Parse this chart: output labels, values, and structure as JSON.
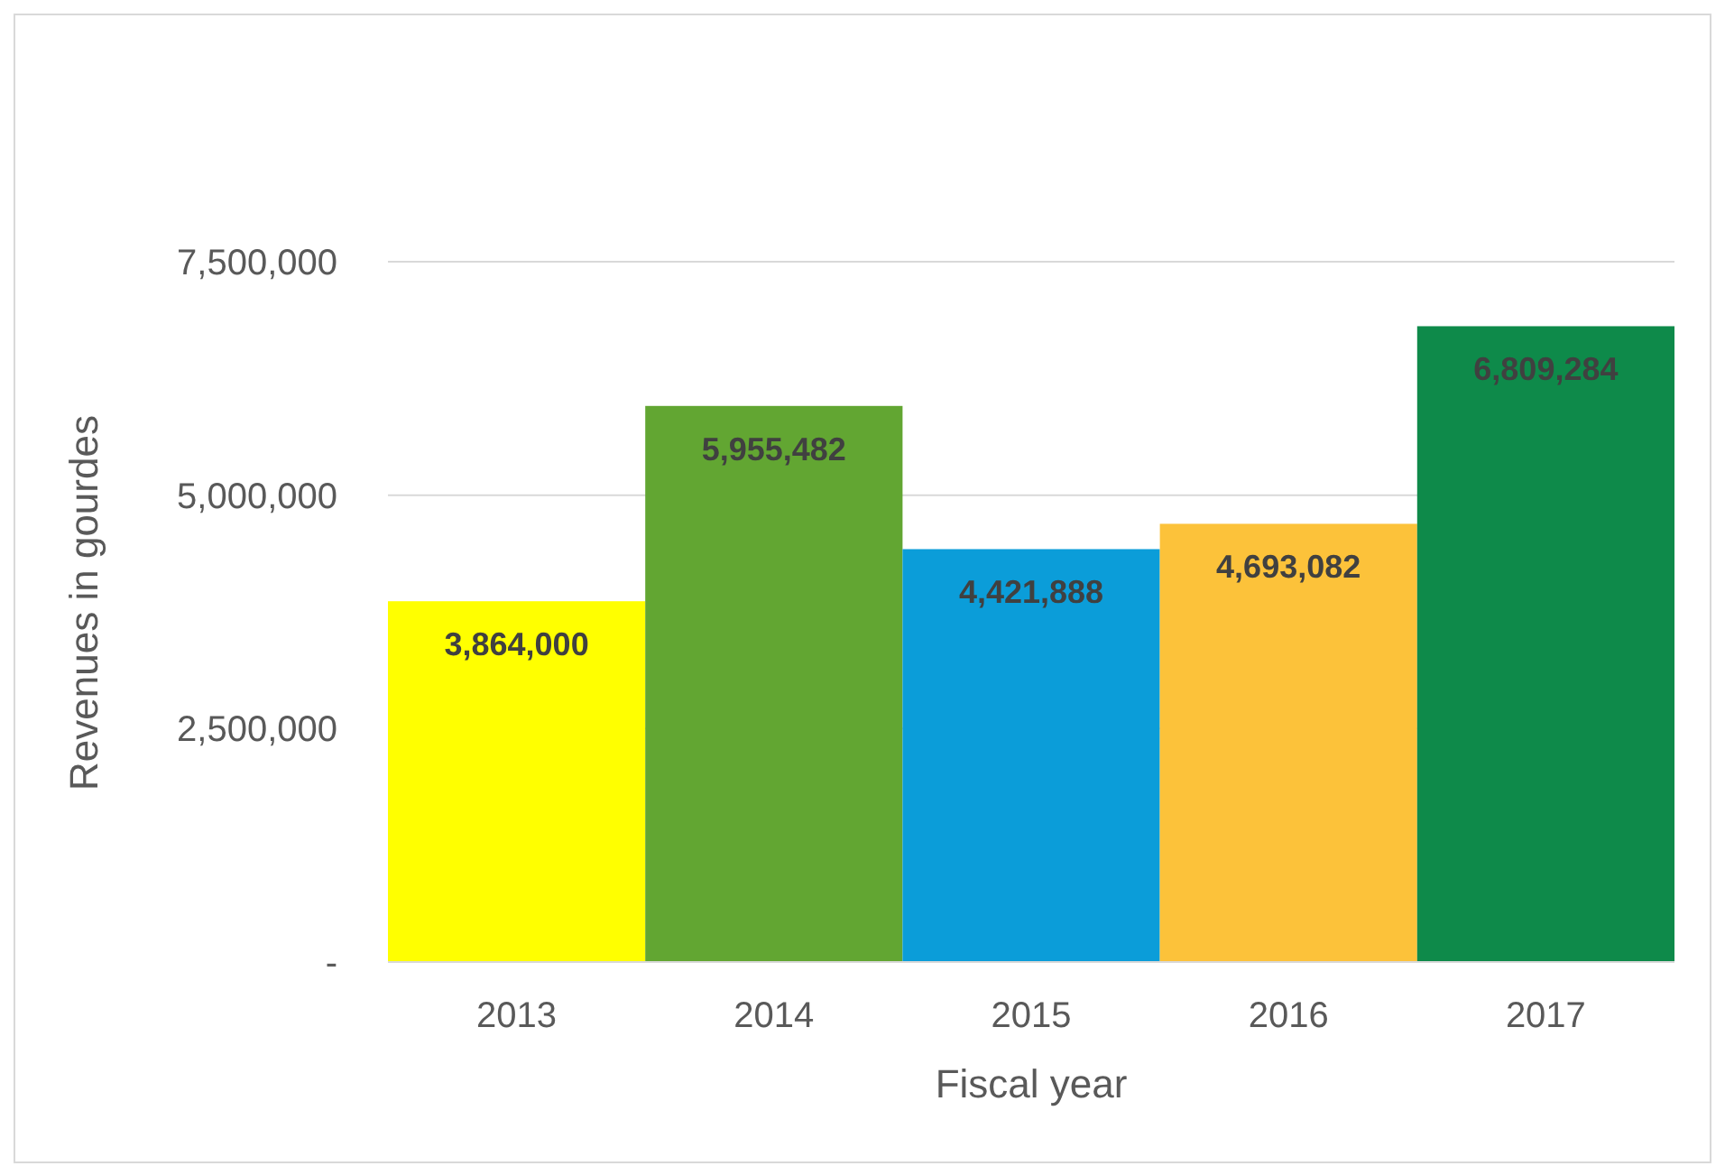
{
  "chart_data": {
    "type": "bar",
    "xlabel": "Fiscal year",
    "ylabel": "Revenues in gourdes",
    "categories": [
      "2013",
      "2014",
      "2015",
      "2016",
      "2017"
    ],
    "values": [
      3864000,
      5955482,
      4421888,
      4693082,
      6809284
    ],
    "colors": [
      "#ffff00",
      "#62a632",
      "#0b9dd9",
      "#fcc23a",
      "#0e8a4a"
    ],
    "ylim": [
      0,
      7500000
    ],
    "yticks": [
      {
        "value": 0,
        "label": "-"
      },
      {
        "value": 2500000,
        "label": "2,500,000"
      },
      {
        "value": 5000000,
        "label": "5,000,000"
      },
      {
        "value": 7500000,
        "label": "7,500,000"
      }
    ],
    "value_labels": [
      "3,864,000",
      "5,955,482",
      "4,421,888",
      "4,693,082",
      "6,809,284"
    ],
    "grid": "y"
  }
}
